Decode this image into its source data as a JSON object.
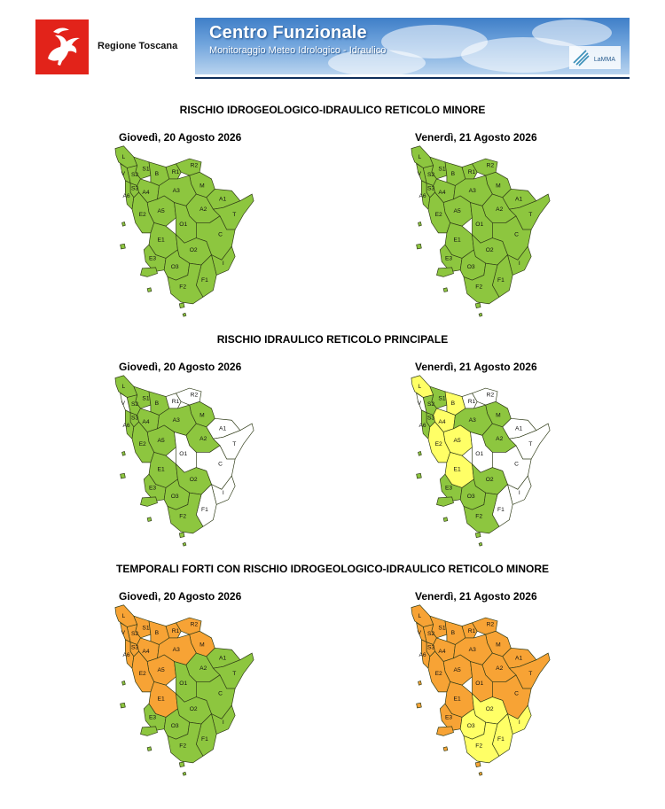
{
  "header": {
    "region_name": "Regione Toscana",
    "banner_title": "Centro Funzionale",
    "banner_subtitle": "Monitoraggio Meteo Idrologico - Idraulico",
    "partner_logo_text": "LaMMA",
    "logo_icon": "pegasus-icon"
  },
  "colors": {
    "green": "#8dc63f",
    "white": "#ffffff",
    "yellow": "#ffff66",
    "orange": "#f7a335",
    "border": "#2e3a16"
  },
  "zone_labels": [
    "L",
    "S1",
    "S2",
    "S3",
    "V",
    "A6",
    "B",
    "R1",
    "R2",
    "M",
    "A4",
    "A3",
    "A1",
    "T",
    "A2",
    "A5",
    "O1",
    "C",
    "E2",
    "E1",
    "O2",
    "I",
    "F1",
    "E3",
    "O3",
    "F2"
  ],
  "sections": [
    {
      "title": "RISCHIO IDROGEOLOGICO-IDRAULICO RETICOLO MINORE",
      "maps": [
        {
          "date": "Giovedì, 20 Agosto 2026",
          "zones": {
            "L": "green",
            "S1": "green",
            "S2": "green",
            "S3": "green",
            "V": "green",
            "A6": "green",
            "B": "green",
            "R1": "green",
            "R2": "green",
            "M": "green",
            "A4": "green",
            "A3": "green",
            "A1": "green",
            "T": "green",
            "A2": "green",
            "A5": "green",
            "O1": "green",
            "C": "green",
            "E2": "green",
            "E1": "green",
            "O2": "green",
            "I": "green",
            "F1": "green",
            "E3": "green",
            "O3": "green",
            "F2": "green"
          }
        },
        {
          "date": "Venerdì, 21 Agosto 2026",
          "zones": {
            "L": "green",
            "S1": "green",
            "S2": "green",
            "S3": "green",
            "V": "green",
            "A6": "green",
            "B": "green",
            "R1": "green",
            "R2": "green",
            "M": "green",
            "A4": "green",
            "A3": "green",
            "A1": "green",
            "T": "green",
            "A2": "green",
            "A5": "green",
            "O1": "green",
            "C": "green",
            "E2": "green",
            "E1": "green",
            "O2": "green",
            "I": "green",
            "F1": "green",
            "E3": "green",
            "O3": "green",
            "F2": "green"
          }
        }
      ]
    },
    {
      "title": "RISCHIO IDRAULICO RETICOLO PRINCIPALE",
      "maps": [
        {
          "date": "Giovedì, 20 Agosto 2026",
          "zones": {
            "L": "green",
            "S1": "green",
            "S2": "green",
            "S3": "green",
            "V": "white",
            "A6": "green",
            "B": "green",
            "R1": "white",
            "R2": "white",
            "M": "green",
            "A4": "green",
            "A3": "green",
            "A1": "white",
            "T": "white",
            "A2": "green",
            "A5": "green",
            "O1": "white",
            "C": "white",
            "E2": "green",
            "E1": "green",
            "O2": "green",
            "I": "white",
            "F1": "white",
            "E3": "green",
            "O3": "green",
            "F2": "green"
          }
        },
        {
          "date": "Venerdì, 21 Agosto 2026",
          "zones": {
            "L": "yellow",
            "S1": "green",
            "S2": "green",
            "S3": "green",
            "V": "white",
            "A6": "green",
            "B": "yellow",
            "R1": "white",
            "R2": "white",
            "M": "green",
            "A4": "yellow",
            "A3": "green",
            "A1": "white",
            "T": "white",
            "A2": "green",
            "A5": "yellow",
            "O1": "white",
            "C": "white",
            "E2": "yellow",
            "E1": "yellow",
            "O2": "green",
            "I": "white",
            "F1": "white",
            "E3": "green",
            "O3": "green",
            "F2": "green"
          }
        }
      ]
    },
    {
      "title": "TEMPORALI FORTI CON RISCHIO IDROGEOLOGICO-IDRAULICO RETICOLO MINORE",
      "maps": [
        {
          "date": "Giovedì, 20 Agosto 2026",
          "zones": {
            "L": "orange",
            "S1": "orange",
            "S2": "orange",
            "S3": "orange",
            "V": "orange",
            "A6": "orange",
            "B": "orange",
            "R1": "orange",
            "R2": "orange",
            "M": "orange",
            "A4": "orange",
            "A3": "orange",
            "A1": "green",
            "T": "green",
            "A2": "green",
            "A5": "orange",
            "O1": "green",
            "C": "green",
            "E2": "orange",
            "E1": "orange",
            "O2": "green",
            "I": "green",
            "F1": "green",
            "E3": "green",
            "O3": "green",
            "F2": "green"
          }
        },
        {
          "date": "Venerdì, 21 Agosto 2026",
          "zones": {
            "L": "orange",
            "S1": "orange",
            "S2": "orange",
            "S3": "orange",
            "V": "orange",
            "A6": "orange",
            "B": "orange",
            "R1": "orange",
            "R2": "orange",
            "M": "orange",
            "A4": "orange",
            "A3": "orange",
            "A1": "orange",
            "T": "orange",
            "A2": "orange",
            "A5": "orange",
            "O1": "orange",
            "C": "orange",
            "E2": "orange",
            "E1": "orange",
            "O2": "yellow",
            "I": "yellow",
            "F1": "yellow",
            "E3": "orange",
            "O3": "yellow",
            "F2": "yellow"
          }
        }
      ]
    }
  ]
}
